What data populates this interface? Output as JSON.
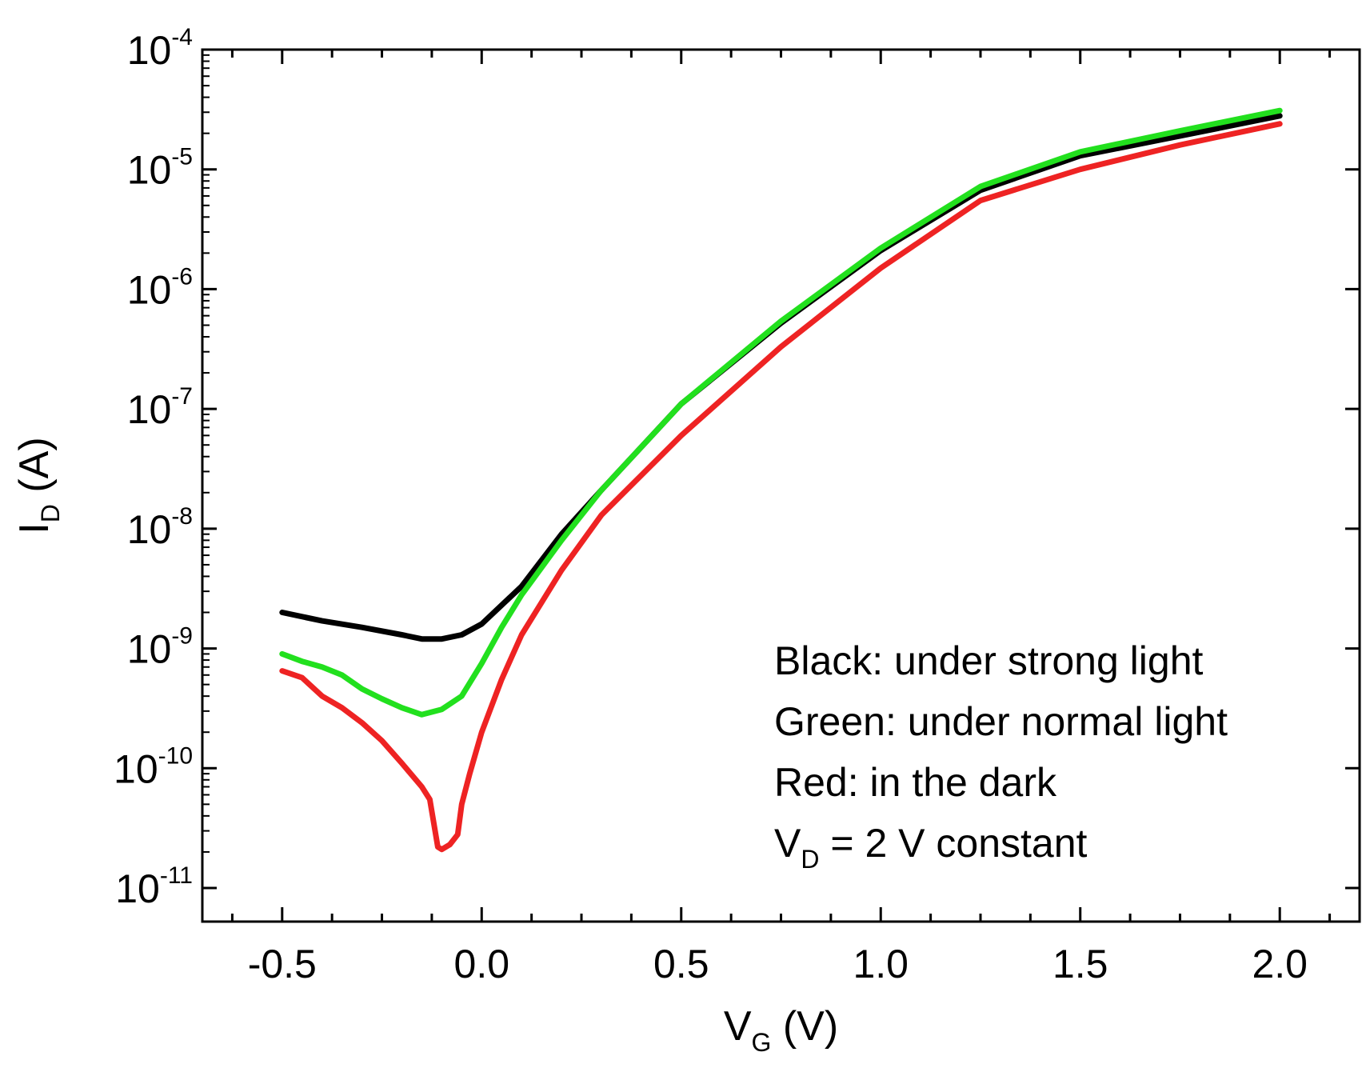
{
  "chart_data": {
    "type": "line",
    "title": "",
    "xlabel": {
      "main": "V",
      "sub": "G",
      "unit": " (V)"
    },
    "ylabel": {
      "main": "I",
      "sub": "D",
      "unit": " (A)"
    },
    "xlim": [
      -0.7,
      2.2
    ],
    "ylim": [
      1e-11,
      0.0001
    ],
    "yscale": "log",
    "grid": false,
    "x_ticks": [
      {
        "value": -0.5,
        "label": "-0.5"
      },
      {
        "value": 0.0,
        "label": "0.0"
      },
      {
        "value": 0.5,
        "label": "0.5"
      },
      {
        "value": 1.0,
        "label": "1.0"
      },
      {
        "value": 1.5,
        "label": "1.5"
      },
      {
        "value": 2.0,
        "label": "2.0"
      }
    ],
    "y_ticks": [
      {
        "value": 0.0001,
        "base": "10",
        "exp": "-4"
      },
      {
        "value": 1e-05,
        "base": "10",
        "exp": "-5"
      },
      {
        "value": 1e-06,
        "base": "10",
        "exp": "-6"
      },
      {
        "value": 1e-07,
        "base": "10",
        "exp": "-7"
      },
      {
        "value": 1e-08,
        "base": "10",
        "exp": "-8"
      },
      {
        "value": 1e-09,
        "base": "10",
        "exp": "-9"
      },
      {
        "value": 1e-10,
        "base": "10",
        "exp": "-10"
      },
      {
        "value": 1e-11,
        "base": "10",
        "exp": "-11"
      }
    ],
    "series": [
      {
        "color": "#000000",
        "x": [
          -0.5,
          -0.4,
          -0.3,
          -0.2,
          -0.15,
          -0.1,
          -0.05,
          0.0,
          0.1,
          0.2,
          0.3,
          0.5,
          0.75,
          1.0,
          1.25,
          1.5,
          1.75,
          2.0
        ],
        "y": [
          2e-09,
          1.7e-09,
          1.5e-09,
          1.3e-09,
          1.2e-09,
          1.2e-09,
          1.3e-09,
          1.6e-09,
          3.3e-09,
          9e-09,
          2.1e-08,
          1.1e-07,
          5.2e-07,
          2.1e-06,
          6.7e-06,
          1.3e-05,
          1.9e-05,
          2.8e-05
        ]
      },
      {
        "color": "#22e01e",
        "x": [
          -0.5,
          -0.45,
          -0.4,
          -0.35,
          -0.3,
          -0.25,
          -0.2,
          -0.15,
          -0.1,
          -0.05,
          0.0,
          0.05,
          0.1,
          0.2,
          0.3,
          0.5,
          0.75,
          1.0,
          1.25,
          1.5,
          1.75,
          2.0
        ],
        "y": [
          9e-10,
          7.8e-10,
          7e-10,
          6e-10,
          4.6e-10,
          3.8e-10,
          3.2e-10,
          2.8e-10,
          3.1e-10,
          4e-10,
          7.5e-10,
          1.5e-09,
          2.8e-09,
          8e-09,
          2.1e-08,
          1.1e-07,
          5.4e-07,
          2.2e-06,
          7.2e-06,
          1.4e-05,
          2.1e-05,
          3.1e-05
        ]
      },
      {
        "color": "#ee2323",
        "x": [
          -0.5,
          -0.45,
          -0.4,
          -0.35,
          -0.3,
          -0.25,
          -0.2,
          -0.15,
          -0.13,
          -0.11,
          -0.1,
          -0.08,
          -0.06,
          -0.05,
          -0.03,
          0.0,
          0.05,
          0.1,
          0.2,
          0.3,
          0.5,
          0.75,
          1.0,
          1.25,
          1.5,
          1.75,
          2.0
        ],
        "y": [
          6.5e-10,
          5.7e-10,
          4e-10,
          3.2e-10,
          2.4e-10,
          1.7e-10,
          1.1e-10,
          7e-11,
          5.5e-11,
          2.2e-11,
          2.1e-11,
          2.3e-11,
          2.8e-11,
          5e-11,
          9e-11,
          2e-10,
          5.5e-10,
          1.3e-09,
          4.5e-09,
          1.3e-08,
          6e-08,
          3.3e-07,
          1.5e-06,
          5.5e-06,
          1e-05,
          1.6e-05,
          2.4e-05
        ]
      }
    ],
    "legend_position": "bottom-right",
    "annotations": [
      {
        "text": "Black: under strong light"
      },
      {
        "text": "Green: under normal light"
      },
      {
        "text": "Red: in the dark"
      },
      {
        "main": "V",
        "sub": "D",
        "rest": " = 2 V constant"
      }
    ]
  }
}
